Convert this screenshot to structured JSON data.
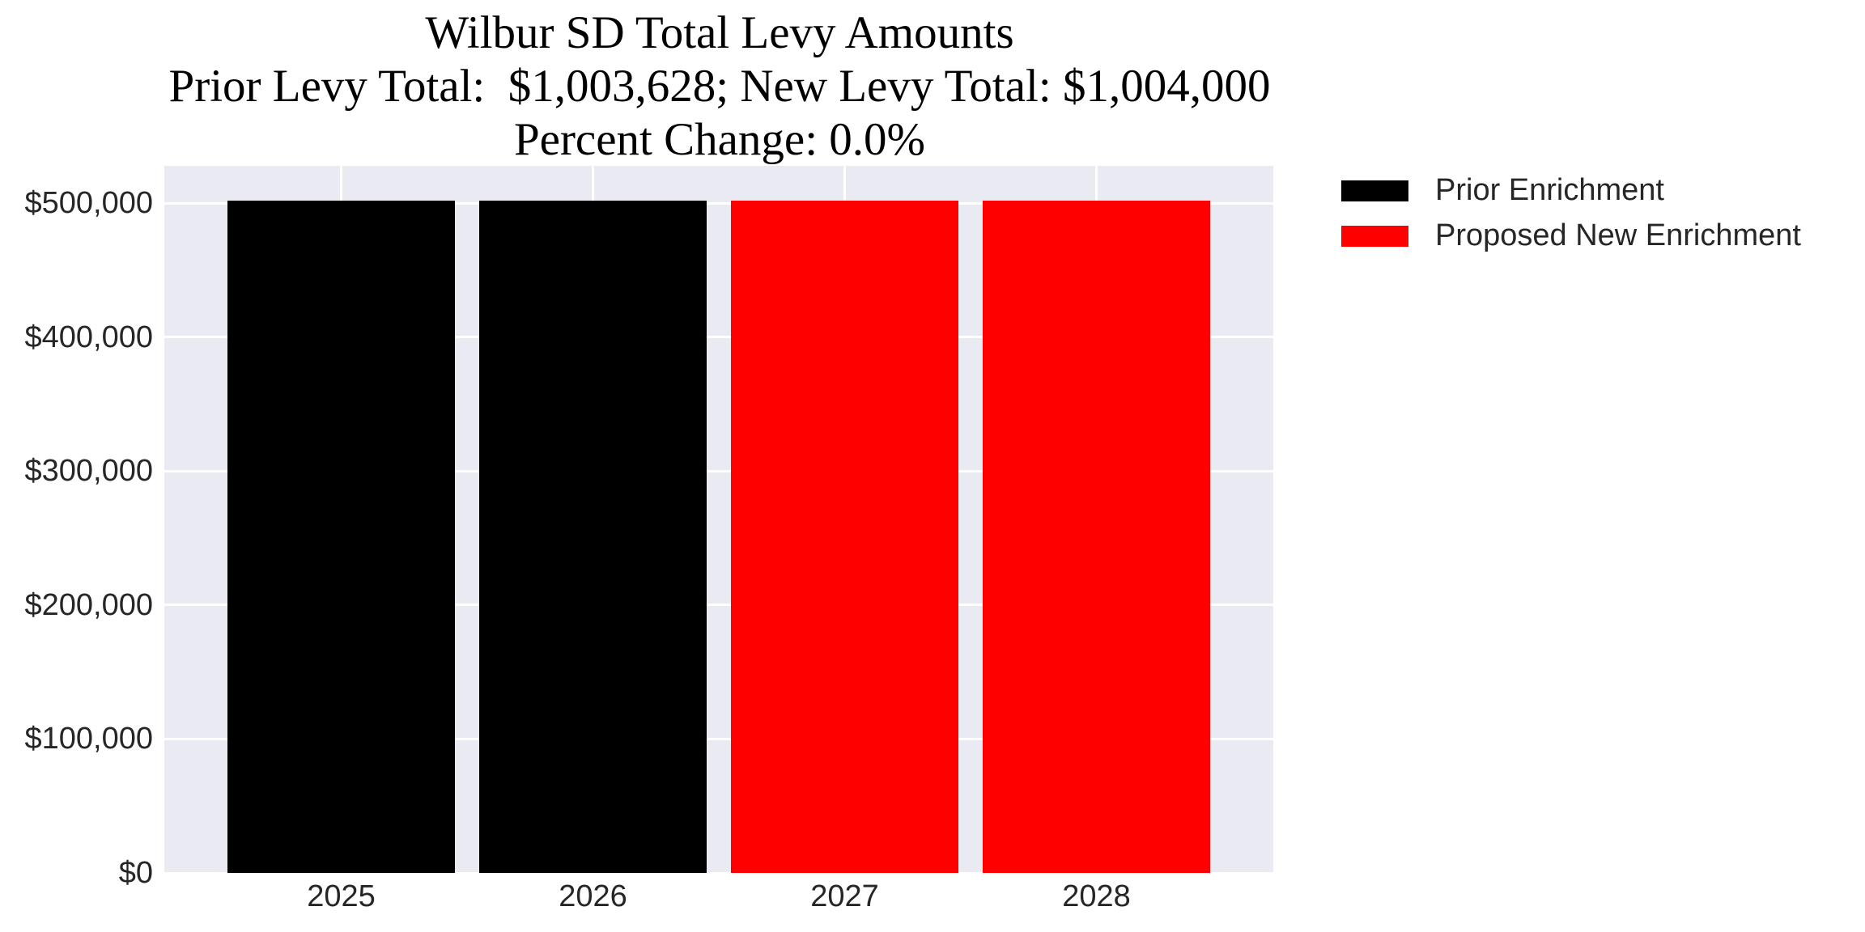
{
  "chart_data": {
    "type": "bar",
    "title": "Wilbur SD Total Levy Amounts",
    "subtitle_line1": "Prior Levy Total:  $1,003,628; New Levy Total: $1,004,000",
    "subtitle_line2": "Percent Change: 0.0%",
    "prior_levy_total": "$1,003,628",
    "new_levy_total": "$1,004,000",
    "percent_change": "0.0%",
    "categories": [
      "2025",
      "2026",
      "2027",
      "2028"
    ],
    "values": [
      501814,
      501814,
      502000,
      502000
    ],
    "bar_series": [
      "Prior Enrichment",
      "Prior Enrichment",
      "Proposed New Enrichment",
      "Proposed New Enrichment"
    ],
    "series_colors": {
      "Prior Enrichment": "#000000",
      "Proposed New Enrichment": "#ff0000"
    },
    "xlabel": "",
    "ylabel": "",
    "ylim": [
      0,
      528000
    ],
    "ytick_values": [
      0,
      100000,
      200000,
      300000,
      400000,
      500000
    ],
    "ytick_labels": [
      "$0",
      "$100,000",
      "$200,000",
      "$300,000",
      "$400,000",
      "$500,000"
    ],
    "grid": true,
    "legend": {
      "position": "upper-right-outside",
      "items": [
        {
          "label": "Prior Enrichment",
          "color": "#000000"
        },
        {
          "label": "Proposed New Enrichment",
          "color": "#ff0000"
        }
      ]
    },
    "plot_bg_color": "#eaeaf2",
    "grid_color": "#ffffff",
    "tick_text_color": "#262626",
    "title_text_color": "#000000"
  }
}
